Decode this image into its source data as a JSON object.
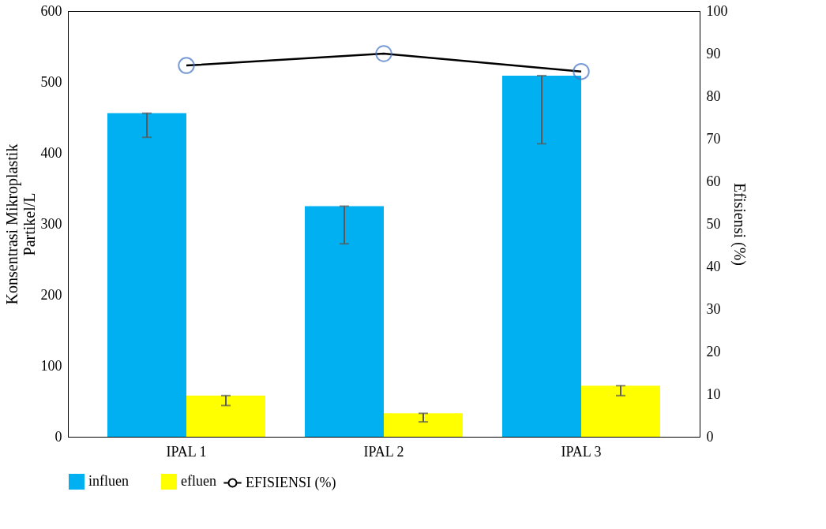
{
  "chart_data": {
    "type": "bar",
    "categories": [
      "IPAL 1",
      "IPAL 2",
      "IPAL 3"
    ],
    "ylabel": "Konsentrasi Mikroplastik\nPartikel/L",
    "y2label": "Efisiensi (%)",
    "ylim": [
      0,
      600
    ],
    "yticks": [
      0,
      100,
      200,
      300,
      400,
      500,
      600
    ],
    "y2lim": [
      0,
      100
    ],
    "y2ticks": [
      0,
      10,
      20,
      30,
      40,
      50,
      60,
      70,
      80,
      90,
      100
    ],
    "legend": "bottom",
    "series": [
      {
        "name": "influen",
        "color": "#00b0f0",
        "values": [
          456,
          325,
          509
        ],
        "errors": [
          [
            422,
            456
          ],
          [
            272,
            325
          ],
          [
            413,
            509
          ]
        ]
      },
      {
        "name": "efluen",
        "color": "#ffff00",
        "values": [
          58,
          33,
          72
        ],
        "errors": [
          [
            44,
            58
          ],
          [
            21,
            33
          ],
          [
            58,
            72
          ]
        ]
      },
      {
        "name": "EFISIENSI (%)",
        "type": "line",
        "axis": "y2",
        "color": "#000000",
        "marker": "circle",
        "line_style": "solid",
        "values": [
          87.2,
          90.0,
          85.8
        ]
      }
    ]
  }
}
